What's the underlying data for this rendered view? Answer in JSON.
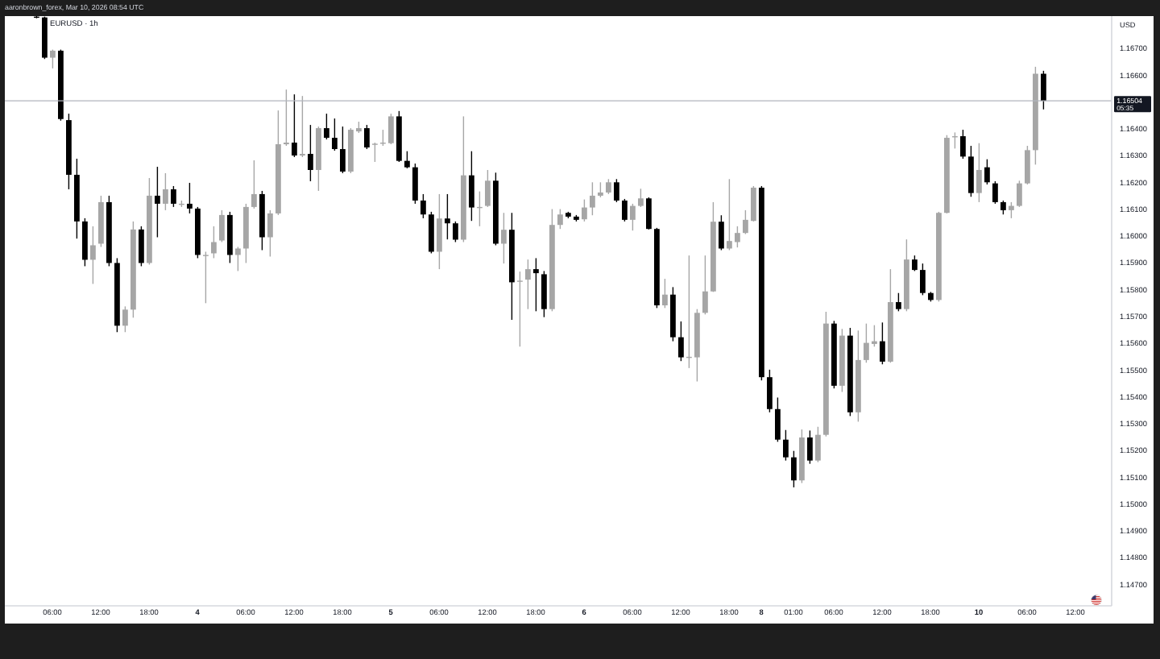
{
  "chart_data": {
    "type": "candlestick",
    "title": "EURUSD · 1h",
    "subtitle": "aaronbrown_forex, Mar 10, 2026 08:54 UTC",
    "ylabel": "USD",
    "categories": [
      null,
      null,
      "06:00",
      null,
      null,
      null,
      null,
      null,
      "12:00",
      null,
      null,
      null,
      null,
      null,
      "18:00",
      null,
      null,
      null,
      null,
      null,
      "4",
      null,
      null,
      null,
      null,
      null,
      "06:00",
      null,
      null,
      null,
      null,
      null,
      "12:00",
      null,
      null,
      null,
      null,
      null,
      "18:00",
      null,
      null,
      null,
      null,
      null,
      "5",
      null,
      null,
      null,
      null,
      null,
      "06:00",
      null,
      null,
      null,
      null,
      null,
      "12:00",
      null,
      null,
      null,
      null,
      null,
      "18:00",
      null,
      null,
      null,
      null,
      null,
      "6",
      null,
      null,
      null,
      null,
      null,
      "06:00",
      null,
      null,
      null,
      null,
      null,
      "12:00",
      null,
      null,
      null,
      null,
      null,
      "18:00",
      null,
      null,
      null,
      "8",
      null,
      null,
      null,
      "01:00",
      null,
      null,
      null,
      null,
      "06:00",
      null,
      null,
      null,
      null,
      null,
      "12:00",
      null,
      null,
      null,
      null,
      null,
      "18:00",
      null,
      null,
      null,
      null,
      null,
      "10",
      null,
      null,
      null,
      null,
      null,
      "06:00",
      null,
      null,
      null,
      null,
      null,
      "12:00",
      null,
      null,
      null,
      null
    ],
    "ohlc": [
      [
        1.16818,
        1.1682,
        1.16812,
        1.16815
      ],
      [
        1.16815,
        1.16818,
        1.1666,
        1.16665
      ],
      [
        1.16665,
        1.16695,
        1.16625,
        1.16691
      ],
      [
        1.16691,
        1.16695,
        1.1643,
        1.16436
      ],
      [
        1.16432,
        1.16456,
        1.16174,
        1.16228
      ],
      [
        1.16228,
        1.16288,
        1.1599,
        1.16054
      ],
      [
        1.16054,
        1.16066,
        1.15887,
        1.15911
      ],
      [
        1.15911,
        1.16036,
        1.15821,
        1.15965
      ],
      [
        1.15971,
        1.1615,
        1.15959,
        1.16126
      ],
      [
        1.16126,
        1.1615,
        1.15887,
        1.15899
      ],
      [
        1.15899,
        1.15917,
        1.15641,
        1.15665
      ],
      [
        1.15665,
        1.15737,
        1.15641,
        1.15725
      ],
      [
        1.15725,
        1.16054,
        1.15695,
        1.16024
      ],
      [
        1.16024,
        1.16036,
        1.15887,
        1.15899
      ],
      [
        1.15899,
        1.16216,
        1.15893,
        1.1615
      ],
      [
        1.1615,
        1.16258,
        1.15995,
        1.1612
      ],
      [
        1.1612,
        1.16234,
        1.16096,
        1.16174
      ],
      [
        1.16174,
        1.16186,
        1.16108,
        1.1612
      ],
      [
        1.1612,
        1.16132,
        1.16108,
        1.1612
      ],
      [
        1.1612,
        1.16198,
        1.16084,
        1.16102
      ],
      [
        1.16102,
        1.16108,
        1.15917,
        1.15929
      ],
      [
        1.15929,
        1.15941,
        1.15749,
        1.15929
      ],
      [
        1.15935,
        1.16036,
        1.15917,
        1.15977
      ],
      [
        1.15983,
        1.16096,
        1.15977,
        1.16078
      ],
      [
        1.16078,
        1.1609,
        1.15899,
        1.15929
      ],
      [
        1.15929,
        1.15959,
        1.15869,
        1.15953
      ],
      [
        1.15953,
        1.1612,
        1.15899,
        1.16108
      ],
      [
        1.16108,
        1.16282,
        1.16102,
        1.16156
      ],
      [
        1.16156,
        1.16168,
        1.15947,
        1.15995
      ],
      [
        1.15995,
        1.16096,
        1.15923,
        1.16084
      ],
      [
        1.16084,
        1.16468,
        1.16078,
        1.16342
      ],
      [
        1.16342,
        1.16546,
        1.16336,
        1.16348
      ],
      [
        1.16348,
        1.16528,
        1.16294,
        1.163
      ],
      [
        1.163,
        1.16522,
        1.16294,
        1.16306
      ],
      [
        1.16306,
        1.16414,
        1.16204,
        1.16246
      ],
      [
        1.16246,
        1.16408,
        1.16168,
        1.16402
      ],
      [
        1.16402,
        1.16456,
        1.1636,
        1.16366
      ],
      [
        1.16366,
        1.16438,
        1.16318,
        1.16324
      ],
      [
        1.16324,
        1.16408,
        1.16234,
        1.1624
      ],
      [
        1.1624,
        1.16402,
        1.16234,
        1.16396
      ],
      [
        1.1639,
        1.16426,
        1.16384,
        1.16402
      ],
      [
        1.16402,
        1.16414,
        1.16324,
        1.1633
      ],
      [
        1.1634,
        1.16348,
        1.16276,
        1.16344
      ],
      [
        1.16346,
        1.16396,
        1.16336,
        1.16348
      ],
      [
        1.16346,
        1.16456,
        1.16342,
        1.16446
      ],
      [
        1.16446,
        1.16466,
        1.16276,
        1.1628
      ],
      [
        1.1628,
        1.16316,
        1.16252,
        1.16256
      ],
      [
        1.16256,
        1.1627,
        1.1612,
        1.16132
      ],
      [
        1.16132,
        1.16156,
        1.16066,
        1.1608
      ],
      [
        1.1608,
        1.1609,
        1.15935,
        1.15941
      ],
      [
        1.15941,
        1.16156,
        1.15876,
        1.16065
      ],
      [
        1.16065,
        1.16156,
        1.15987,
        1.16047
      ],
      [
        1.16047,
        1.16054,
        1.15977,
        1.15986
      ],
      [
        1.15986,
        1.16446,
        1.15977,
        1.16226
      ],
      [
        1.16226,
        1.16316,
        1.16056,
        1.16106
      ],
      [
        1.16106,
        1.16166,
        1.16036,
        1.16108
      ],
      [
        1.16112,
        1.16246,
        1.16108,
        1.16206
      ],
      [
        1.16206,
        1.16236,
        1.15965,
        1.15971
      ],
      [
        1.15971,
        1.16086,
        1.15897,
        1.16023
      ],
      [
        1.16023,
        1.16086,
        1.15687,
        1.15827
      ],
      [
        1.15833,
        1.15867,
        1.15587,
        1.15833
      ],
      [
        1.15837,
        1.15912,
        1.15727,
        1.15876
      ],
      [
        1.15876,
        1.15917,
        1.15719,
        1.15861
      ],
      [
        1.15857,
        1.15869,
        1.15697,
        1.15727
      ],
      [
        1.15727,
        1.161,
        1.15719,
        1.16041
      ],
      [
        1.16041,
        1.161,
        1.16026,
        1.1608
      ],
      [
        1.16086,
        1.1609,
        1.16066,
        1.16072
      ],
      [
        1.16072,
        1.16078,
        1.16054,
        1.1606
      ],
      [
        1.16062,
        1.16136,
        1.16054,
        1.16106
      ],
      [
        1.16106,
        1.162,
        1.16077,
        1.1615
      ],
      [
        1.1615,
        1.162,
        1.16144,
        1.16162
      ],
      [
        1.16162,
        1.16212,
        1.16156,
        1.162
      ],
      [
        1.162,
        1.16212,
        1.16126,
        1.16132
      ],
      [
        1.16132,
        1.16138,
        1.16054,
        1.1606
      ],
      [
        1.1606,
        1.1612,
        1.1602,
        1.16112
      ],
      [
        1.16112,
        1.16176,
        1.16108,
        1.1614
      ],
      [
        1.1614,
        1.16144,
        1.16024,
        1.16026
      ],
      [
        1.16026,
        1.1603,
        1.15731,
        1.15741
      ],
      [
        1.15741,
        1.1584,
        1.15731,
        1.15781
      ],
      [
        1.15781,
        1.15809,
        1.15607,
        1.15622
      ],
      [
        1.15622,
        1.15681,
        1.15533,
        1.15547
      ],
      [
        1.15547,
        1.15927,
        1.15507,
        1.15549
      ],
      [
        1.15547,
        1.15727,
        1.15457,
        1.15713
      ],
      [
        1.15713,
        1.15927,
        1.15707,
        1.15793
      ],
      [
        1.15793,
        1.16126,
        1.15791,
        1.16053
      ],
      [
        1.16053,
        1.16077,
        1.15947,
        1.15953
      ],
      [
        1.15953,
        1.16212,
        1.15947,
        1.15981
      ],
      [
        1.15977,
        1.16036,
        1.15957,
        1.16011
      ],
      [
        1.16011,
        1.16096,
        1.16007,
        1.1606
      ],
      [
        1.16056,
        1.16186,
        1.16054,
        1.1618
      ],
      [
        1.1618,
        1.16186,
        1.15461,
        1.15473
      ],
      [
        1.15473,
        1.15501,
        1.15342,
        1.15354
      ],
      [
        1.15354,
        1.15397,
        1.15232,
        1.1524
      ],
      [
        1.1524,
        1.15276,
        1.15162,
        1.15174
      ],
      [
        1.15174,
        1.15198,
        1.15062,
        1.15088
      ],
      [
        1.15088,
        1.15278,
        1.15078,
        1.15248
      ],
      [
        1.15248,
        1.15274,
        1.1515,
        1.15162
      ],
      [
        1.15162,
        1.15288,
        1.15156,
        1.15258
      ],
      [
        1.15258,
        1.15717,
        1.15252,
        1.15673
      ],
      [
        1.15673,
        1.15683,
        1.15431,
        1.15441
      ],
      [
        1.15441,
        1.15653,
        1.15418,
        1.15628
      ],
      [
        1.15628,
        1.15657,
        1.15328,
        1.15342
      ],
      [
        1.15342,
        1.15647,
        1.15307,
        1.15537
      ],
      [
        1.15537,
        1.15673,
        1.15527,
        1.15601
      ],
      [
        1.15597,
        1.15667,
        1.15587,
        1.15607
      ],
      [
        1.15607,
        1.15677,
        1.15521,
        1.15531
      ],
      [
        1.15531,
        1.15876,
        1.15527,
        1.15753
      ],
      [
        1.15753,
        1.15787,
        1.15719,
        1.15727
      ],
      [
        1.15727,
        1.15987,
        1.15719,
        1.15912
      ],
      [
        1.15912,
        1.15927,
        1.15869,
        1.15873
      ],
      [
        1.15873,
        1.15897,
        1.15779,
        1.15787
      ],
      [
        1.15787,
        1.15791,
        1.15755,
        1.15761
      ],
      [
        1.15761,
        1.1609,
        1.15755,
        1.16086
      ],
      [
        1.16086,
        1.16376,
        1.16084,
        1.16366
      ],
      [
        1.1637,
        1.16386,
        1.16326,
        1.16372
      ],
      [
        1.16372,
        1.16396,
        1.16288,
        1.16296
      ],
      [
        1.16296,
        1.16336,
        1.16146,
        1.1616
      ],
      [
        1.1616,
        1.16346,
        1.16126,
        1.16246
      ],
      [
        1.16256,
        1.16286,
        1.16192,
        1.162
      ],
      [
        1.16196,
        1.16204,
        1.1612,
        1.16126
      ],
      [
        1.16126,
        1.16132,
        1.1608,
        1.16096
      ],
      [
        1.16096,
        1.16126,
        1.16066,
        1.16112
      ],
      [
        1.16112,
        1.16206,
        1.16108,
        1.16196
      ],
      [
        1.16196,
        1.16336,
        1.16192,
        1.1632
      ],
      [
        1.1632,
        1.16631,
        1.16266,
        1.16605
      ],
      [
        1.16605,
        1.16616,
        1.16472,
        1.16504
      ],
      null,
      null,
      null,
      null,
      null,
      null,
      null,
      null
    ],
    "colors": [
      "#000000",
      "#000000",
      "#a6a6a6",
      "#000000",
      "#000000",
      "#000000",
      "#000000",
      "#a6a6a6",
      "#a6a6a6",
      "#000000",
      "#000000",
      "#a6a6a6",
      "#a6a6a6",
      "#000000",
      "#a6a6a6",
      "#000000",
      "#a6a6a6",
      "#000000",
      "#a6a6a6",
      "#000000",
      "#000000",
      "#a6a6a6",
      "#a6a6a6",
      "#a6a6a6",
      "#000000",
      "#a6a6a6",
      "#a6a6a6",
      "#a6a6a6",
      "#000000",
      "#a6a6a6",
      "#a6a6a6",
      "#a6a6a6",
      "#000000",
      "#a6a6a6",
      "#000000",
      "#a6a6a6",
      "#000000",
      "#000000",
      "#000000",
      "#a6a6a6",
      "#a6a6a6",
      "#000000",
      "#a6a6a6",
      "#a6a6a6",
      "#a6a6a6",
      "#000000",
      "#000000",
      "#000000",
      "#000000",
      "#000000",
      "#a6a6a6",
      "#000000",
      "#000000",
      "#a6a6a6",
      "#000000",
      "#a6a6a6",
      "#a6a6a6",
      "#000000",
      "#a6a6a6",
      "#000000",
      "#a6a6a6",
      "#a6a6a6",
      "#000000",
      "#000000",
      "#a6a6a6",
      "#a6a6a6",
      "#000000",
      "#000000",
      "#a6a6a6",
      "#a6a6a6",
      "#a6a6a6",
      "#a6a6a6",
      "#000000",
      "#000000",
      "#a6a6a6",
      "#a6a6a6",
      "#000000",
      "#000000",
      "#a6a6a6",
      "#000000",
      "#000000",
      "#a6a6a6",
      "#a6a6a6",
      "#a6a6a6",
      "#a6a6a6",
      "#000000",
      "#a6a6a6",
      "#a6a6a6",
      "#a6a6a6",
      "#a6a6a6",
      "#000000",
      "#000000",
      "#000000",
      "#000000",
      "#000000",
      "#a6a6a6",
      "#000000",
      "#a6a6a6",
      "#a6a6a6",
      "#000000",
      "#a6a6a6",
      "#000000",
      "#a6a6a6",
      "#a6a6a6",
      "#a6a6a6",
      "#000000",
      "#a6a6a6",
      "#000000",
      "#a6a6a6",
      "#000000",
      "#000000",
      "#000000",
      "#a6a6a6",
      "#a6a6a6",
      "#a6a6a6",
      "#000000",
      "#000000",
      "#a6a6a6",
      "#000000",
      "#000000",
      "#000000",
      "#a6a6a6",
      "#a6a6a6",
      "#a6a6a6",
      "#a6a6a6",
      "#000000",
      null,
      null,
      null,
      null,
      null,
      null,
      null,
      null
    ],
    "ylim": [
      1.1462,
      1.1682
    ],
    "yticks": [
      {
        "value": 1.147,
        "label": "1.14700"
      },
      {
        "value": 1.148,
        "label": "1.14800"
      },
      {
        "value": 1.149,
        "label": "1.14900"
      },
      {
        "value": 1.15,
        "label": "1.15000"
      },
      {
        "value": 1.151,
        "label": "1.15100"
      },
      {
        "value": 1.152,
        "label": "1.15200"
      },
      {
        "value": 1.153,
        "label": "1.15300"
      },
      {
        "value": 1.154,
        "label": "1.15400"
      },
      {
        "value": 1.155,
        "label": "1.15500"
      },
      {
        "value": 1.156,
        "label": "1.15600"
      },
      {
        "value": 1.157,
        "label": "1.15700"
      },
      {
        "value": 1.158,
        "label": "1.15800"
      },
      {
        "value": 1.159,
        "label": "1.15900"
      },
      {
        "value": 1.16,
        "label": "1.16000"
      },
      {
        "value": 1.161,
        "label": "1.16100"
      },
      {
        "value": 1.162,
        "label": "1.16200"
      },
      {
        "value": 1.163,
        "label": "1.16300"
      },
      {
        "value": 1.164,
        "label": "1.16400"
      },
      {
        "value": 1.166,
        "label": "1.16600"
      },
      {
        "value": 1.167,
        "label": "1.16700"
      }
    ],
    "ref_lines": [
      {
        "axis": "y",
        "value": 1.16504,
        "label": "1.16504",
        "color": "#b2b5be"
      }
    ],
    "annotations": [
      "05:35"
    ]
  }
}
